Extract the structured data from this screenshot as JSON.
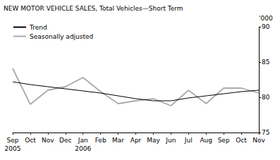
{
  "chart_data": {
    "type": "line",
    "title": "NEW MOTOR VEHICLE SALES, Total Vehicles—Short Term",
    "y_label": "'000",
    "categories": [
      "Sep\n2005",
      "Oct",
      "Nov",
      "Dec",
      "Jan\n2006",
      "Feb",
      "Mar",
      "Apr",
      "May",
      "Jun",
      "Jul",
      "Aug",
      "Sep",
      "Oct",
      "Nov"
    ],
    "series": [
      {
        "name": "Trend",
        "color": "#000000",
        "line_style": "solid",
        "values": [
          82.2,
          81.8,
          81.5,
          81.2,
          80.9,
          80.6,
          80.2,
          79.8,
          79.5,
          79.5,
          79.9,
          80.2,
          80.5,
          80.8,
          81.0
        ]
      },
      {
        "name": "Seasonally adjusted",
        "color": "#aaaaaa",
        "line_style": "solid",
        "values": [
          84.1,
          79.0,
          81.0,
          81.5,
          82.8,
          80.8,
          79.1,
          79.5,
          79.8,
          78.8,
          81.0,
          79.1,
          81.3,
          81.3,
          80.6
        ]
      }
    ],
    "ylim": [
      75,
      90
    ],
    "yticks": [
      75,
      80,
      85,
      90
    ],
    "grid": false,
    "legend": "top-left"
  }
}
